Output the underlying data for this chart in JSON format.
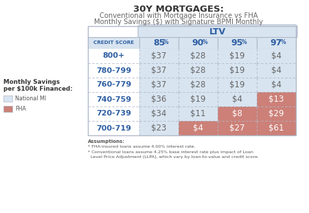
{
  "title_main": "30Y MORTGAGES:",
  "title_sub1": "Conventional with Mortgage Insurance vs FHA",
  "title_sub2": "Monthly Savings ($) with Signature BPMI Monthly",
  "ltv_header": "LTV",
  "col_header": "CREDIT SCORE",
  "ltv_cols": [
    "85%",
    "90%",
    "95%",
    "97%"
  ],
  "credit_scores": [
    "800+",
    "780-799",
    "760-779",
    "740-759",
    "720-739",
    "700-719"
  ],
  "values": [
    [
      "$37",
      "$28",
      "$19",
      "$4"
    ],
    [
      "$37",
      "$28",
      "$19",
      "$4"
    ],
    [
      "$37",
      "$28",
      "$19",
      "$4"
    ],
    [
      "$36",
      "$19",
      "$4",
      "$13"
    ],
    [
      "$34",
      "$11",
      "$8",
      "$29"
    ],
    [
      "$23",
      "$4",
      "$27",
      "$61"
    ]
  ],
  "cell_bg": [
    [
      "light_blue",
      "light_blue",
      "light_blue",
      "light_blue"
    ],
    [
      "light_blue",
      "light_blue",
      "light_blue",
      "light_blue"
    ],
    [
      "light_blue",
      "light_blue",
      "light_blue",
      "light_blue"
    ],
    [
      "light_blue",
      "light_blue",
      "light_blue",
      "fha_red"
    ],
    [
      "light_blue",
      "light_blue",
      "fha_red",
      "fha_red"
    ],
    [
      "light_blue",
      "fha_red",
      "fha_red",
      "fha_red"
    ]
  ],
  "color_light_blue": "#d8e4f0",
  "color_fha_red": "#cc8078",
  "color_white": "#ffffff",
  "color_blue_text": "#2e5fa3",
  "color_dark_text": "#666666",
  "color_fha_text": "#ffffff",
  "color_border": "#b0b8c8",
  "color_title_main": "#333333",
  "color_title_sub": "#666666",
  "assumptions_bold": "Assumptions:",
  "assumptions_line2": "* FHA-insured loans assume 4.00% interest rate.",
  "assumptions_line3": "* Conventional loans assume 4.25% base interest rate plus impact of Loan",
  "assumptions_line4": "  Level Price Adjustment (LLPA), which vary by loan-to-value and credit score.",
  "legend_label_line1": "Monthly Savings",
  "legend_label_line2": "per $100k Financed:",
  "legend_national_mi": "National MI",
  "legend_fha": "FHA"
}
